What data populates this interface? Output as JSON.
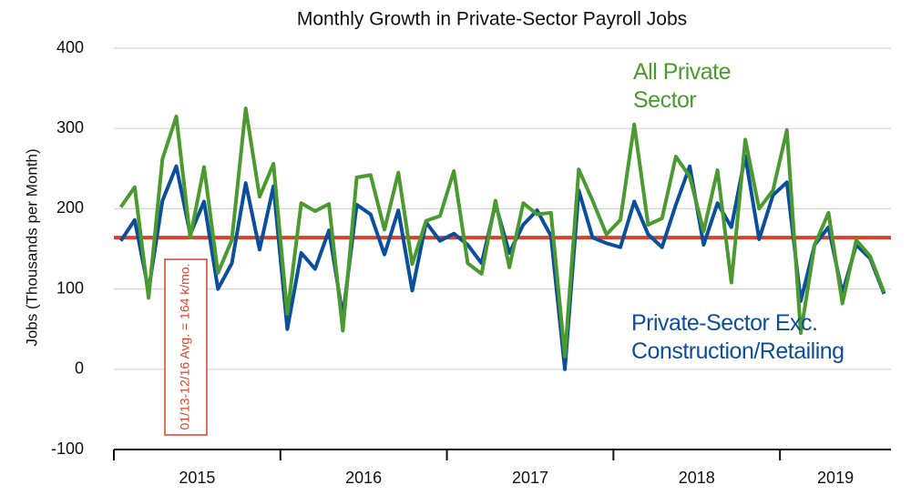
{
  "chart_data": {
    "type": "line",
    "title": "Monthly Growth in Private-Sector Payroll Jobs",
    "y_label": "Jobs (Thousands per Month)",
    "categories": [
      null,
      null,
      null,
      null,
      null,
      null,
      null,
      null,
      null,
      null,
      null,
      null,
      null,
      null,
      null,
      null,
      null,
      null,
      null,
      null,
      null,
      null,
      null,
      null,
      null,
      null,
      null,
      null,
      null,
      null,
      null,
      null,
      null,
      null,
      null,
      null,
      null,
      null,
      null,
      null,
      null,
      null,
      null,
      null,
      null,
      null,
      null,
      null,
      null,
      null,
      null,
      null,
      null,
      null,
      null,
      null
    ],
    "year_labels": [
      "2015",
      "2016",
      "2017",
      "2018",
      "2019"
    ],
    "series": [
      {
        "name": "All Private Sector",
        "color": "#4a9a2f",
        "values": [
          202,
          227,
          89,
          262,
          315,
          164,
          252,
          120,
          161,
          325,
          215,
          256,
          69,
          207,
          197,
          206,
          48,
          239,
          242,
          174,
          245,
          131,
          185,
          191,
          247,
          132,
          119,
          210,
          127,
          207,
          193,
          195,
          16,
          249,
          210,
          168,
          186,
          305,
          180,
          188,
          265,
          240,
          172,
          248,
          108,
          286,
          200,
          223,
          298,
          45,
          155,
          195,
          82,
          161,
          141,
          96
        ]
      },
      {
        "name": "Private-Sector Exc. Construction/Retailing",
        "color": "#0b4f9c",
        "values": [
          160,
          186,
          98,
          210,
          253,
          168,
          209,
          100,
          132,
          232,
          149,
          228,
          50,
          145,
          125,
          173,
          66,
          205,
          193,
          143,
          198,
          98,
          183,
          160,
          169,
          155,
          132,
          206,
          145,
          180,
          198,
          166,
          0,
          223,
          164,
          157,
          152,
          209,
          168,
          152,
          205,
          253,
          155,
          207,
          177,
          266,
          162,
          217,
          233,
          85,
          155,
          177,
          95,
          155,
          138,
          94
        ]
      }
    ],
    "reference_line": {
      "value": 164,
      "label": "01/13-12/16 Avg. = 164 k/mo.",
      "color": "#d9412a"
    },
    "ylim": [
      -100,
      400
    ],
    "yticks": [
      -100,
      0,
      100,
      200,
      300,
      400
    ],
    "grid": true
  }
}
